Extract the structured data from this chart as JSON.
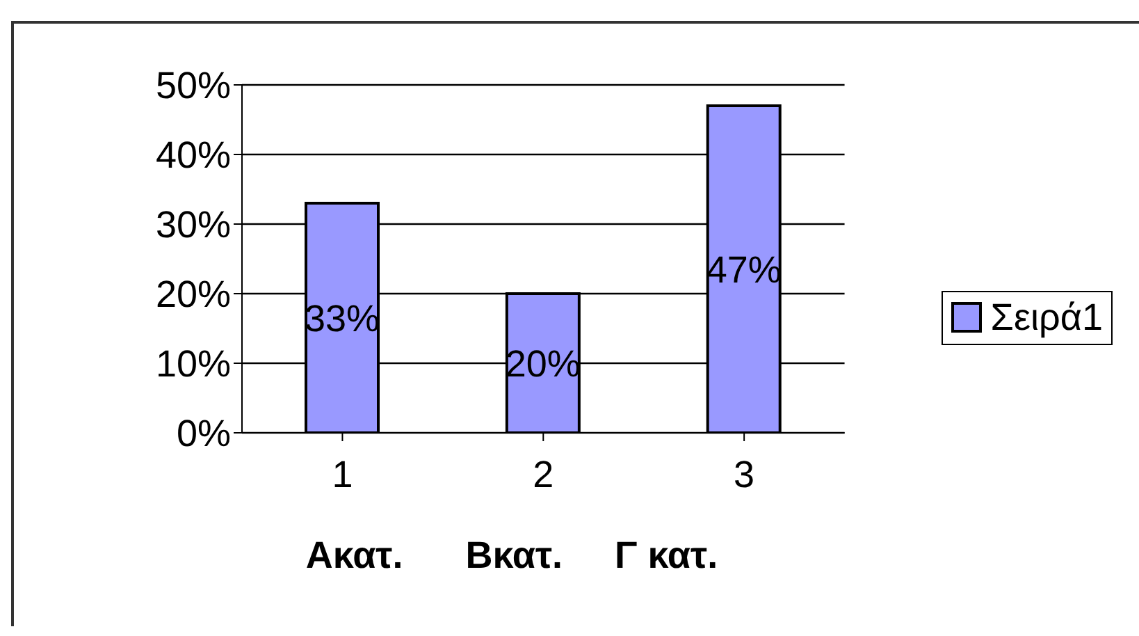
{
  "chart_data": {
    "type": "bar",
    "categories": [
      "1",
      "2",
      "3"
    ],
    "xlabel": "Ακατ.      Βκατ.     Γ κατ.",
    "series": [
      {
        "name": "Σειρά1",
        "color": "#9999ff",
        "values": [
          33,
          20,
          47
        ],
        "value_labels": [
          "33%",
          "20%",
          "47%"
        ]
      }
    ],
    "ylim": [
      0,
      50
    ],
    "yticks": [
      {
        "value": 0,
        "label": "0%"
      },
      {
        "value": 10,
        "label": "10%"
      },
      {
        "value": 20,
        "label": "20%"
      },
      {
        "value": 30,
        "label": "30%"
      },
      {
        "value": 40,
        "label": "40%"
      },
      {
        "value": 50,
        "label": "50%"
      }
    ],
    "grid": "y",
    "legend": "right"
  }
}
